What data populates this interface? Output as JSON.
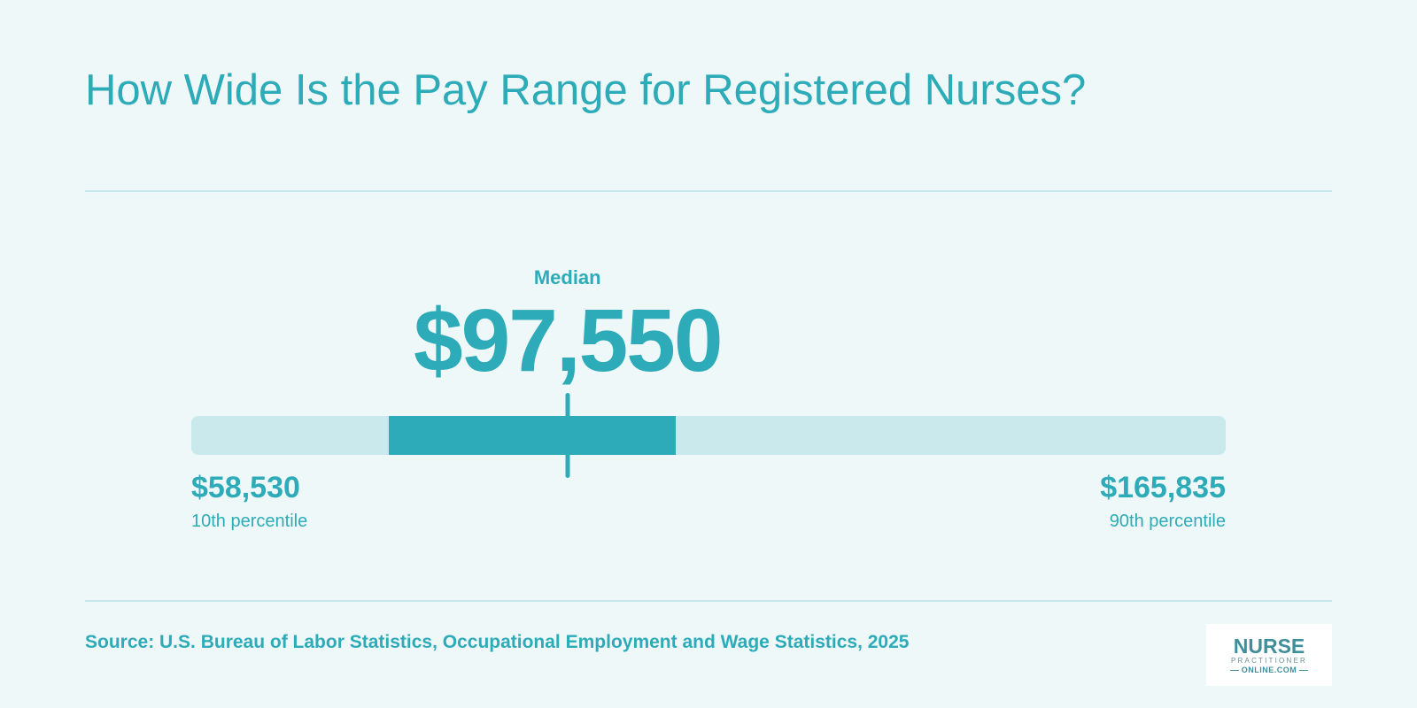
{
  "title": "How Wide Is the Pay Range for Registered Nurses?",
  "chart_data": {
    "type": "range",
    "title": "How Wide Is the Pay Range for Registered Nurses?",
    "unit": "USD",
    "scale_min": 58530,
    "scale_max": 165835,
    "low": {
      "value": 58530,
      "value_label": "$58,530",
      "label": "10th percentile"
    },
    "high": {
      "value": 165835,
      "value_label": "$165,835",
      "label": "90th percentile"
    },
    "median": {
      "value": 97550,
      "value_label": "$97,550",
      "label": "Median"
    },
    "highlighted_range": [
      79000,
      108800
    ]
  },
  "source": "Source: U.S. Bureau of Labor Statistics, Occupational Employment and Wage Statistics, 2025",
  "logo": {
    "line1": "NURSE",
    "line2": "PRACTITIONER",
    "line3": "ONLINE.COM"
  },
  "colors": {
    "accent": "#2eabb8",
    "track": "#cae9ec",
    "background": "#eef8f8"
  }
}
